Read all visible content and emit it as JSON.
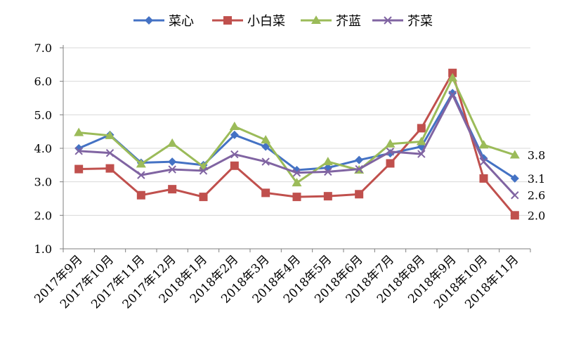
{
  "chart_data": {
    "type": "line",
    "categories": [
      "2017年9月",
      "2017年10月",
      "2017年11月",
      "2017年12月",
      "2018年1月",
      "2018年2月",
      "2018年3月",
      "2018年4月",
      "2018年5月",
      "2018年6月",
      "2018年7月",
      "2018年8月",
      "2018年9月",
      "2018年10月",
      "2018年11月"
    ],
    "y_ticks": [
      "1.0",
      "2.0",
      "3.0",
      "4.0",
      "5.0",
      "6.0",
      "7.0"
    ],
    "ylim": [
      1.0,
      7.0
    ],
    "grid": "horizontal",
    "legend_position": "top",
    "series": [
      {
        "name": "菜心",
        "color": "#4472C4",
        "marker": "diamond",
        "values": [
          4.0,
          4.4,
          3.57,
          3.6,
          3.5,
          4.4,
          4.05,
          3.35,
          3.42,
          3.65,
          3.85,
          4.05,
          5.65,
          3.7,
          3.1
        ],
        "end_label": "3.1"
      },
      {
        "name": "小白菜",
        "color": "#C0504D",
        "marker": "square",
        "values": [
          3.38,
          3.4,
          2.6,
          2.78,
          2.55,
          3.48,
          2.67,
          2.55,
          2.57,
          2.63,
          3.55,
          4.6,
          6.25,
          3.1,
          2.0
        ],
        "end_label": "2.0"
      },
      {
        "name": "芥蓝",
        "color": "#9BBB59",
        "marker": "triangle",
        "values": [
          4.47,
          4.38,
          3.53,
          4.15,
          3.45,
          4.65,
          4.25,
          2.97,
          3.6,
          3.35,
          4.13,
          4.2,
          6.1,
          4.1,
          3.8
        ],
        "end_label": "3.8"
      },
      {
        "name": "芥菜",
        "color": "#8064A2",
        "marker": "x",
        "values": [
          3.92,
          3.86,
          3.2,
          3.37,
          3.33,
          3.82,
          3.6,
          3.27,
          3.3,
          3.38,
          3.9,
          3.83,
          5.6,
          3.6,
          2.6
        ],
        "end_label": "2.6"
      }
    ]
  }
}
